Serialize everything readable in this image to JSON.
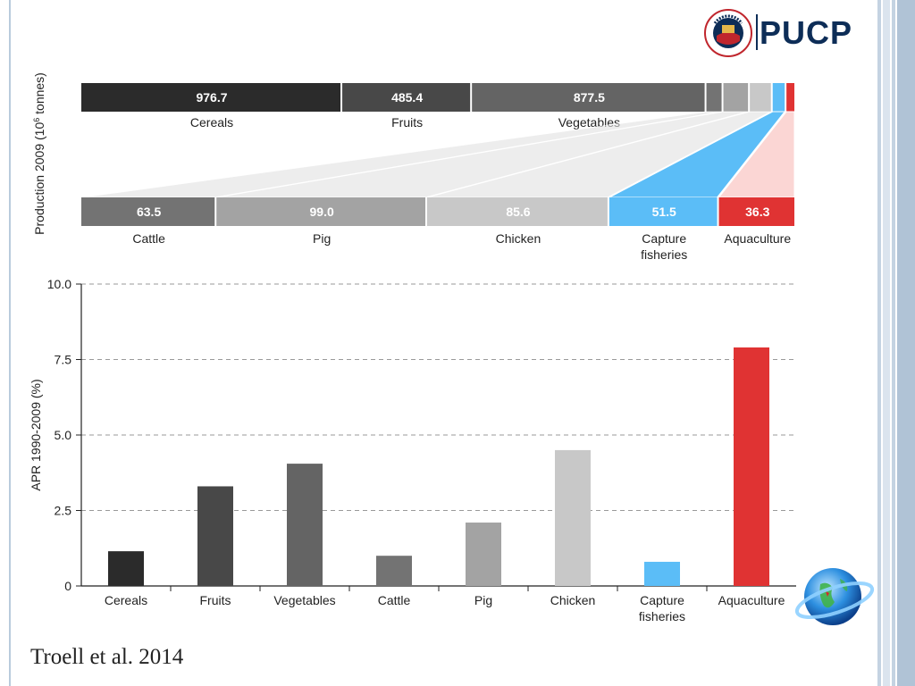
{
  "citation": "Troell et al. 2014",
  "logo": {
    "text": "PUCP",
    "seal_text": "ET LUX IN TENEBRIS LUCET"
  },
  "chart_data": [
    {
      "type": "bar",
      "orientation": "horizontal-stacked",
      "ylabel_main": "Production 2009 (10",
      "ylabel_sup": "6",
      "ylabel_tail": " tonnes)",
      "top_segments": [
        {
          "name": "Cereals",
          "value": 976.7,
          "label": "976.7",
          "color": "#2b2b2b"
        },
        {
          "name": "Fruits",
          "value": 485.4,
          "label": "485.4",
          "color": "#484848"
        },
        {
          "name": "Vegetables",
          "value": 877.5,
          "label": "877.5",
          "color": "#646464"
        },
        {
          "name": "Cattle",
          "value": 63.5,
          "label": "",
          "color": "#737373"
        },
        {
          "name": "Pig",
          "value": 99.0,
          "label": "",
          "color": "#a3a3a3"
        },
        {
          "name": "Chicken",
          "value": 85.6,
          "label": "",
          "color": "#c8c8c8"
        },
        {
          "name": "Capture fisheries",
          "value": 51.5,
          "label": "",
          "color": "#5bbdf7"
        },
        {
          "name": "Aquaculture",
          "value": 36.3,
          "label": "",
          "color": "#e03333"
        }
      ],
      "top_category_labels": [
        "Cereals",
        "Fruits",
        "Vegetables"
      ],
      "bottom_segments": [
        {
          "name": "Cattle",
          "label_lines": [
            "Cattle"
          ],
          "value": 63.5,
          "label": "63.5",
          "color": "#737373"
        },
        {
          "name": "Pig",
          "label_lines": [
            "Pig"
          ],
          "value": 99.0,
          "label": "99.0",
          "color": "#a3a3a3"
        },
        {
          "name": "Chicken",
          "label_lines": [
            "Chicken"
          ],
          "value": 85.6,
          "label": "85.6",
          "color": "#c8c8c8"
        },
        {
          "name": "Capture fisheries",
          "label_lines": [
            "Capture",
            "fisheries"
          ],
          "value": 51.5,
          "label": "51.5",
          "color": "#5bbdf7"
        },
        {
          "name": "Aquaculture",
          "label_lines": [
            "Aquaculture"
          ],
          "value": 36.3,
          "label": "36.3",
          "color": "#e03333"
        }
      ]
    },
    {
      "type": "bar",
      "ylabel": "APR 1990-2009 (%)",
      "ylim": [
        0,
        10
      ],
      "yticks": [
        "0",
        "2.5",
        "5.0",
        "7.5",
        "10.0"
      ],
      "grid": true,
      "categories": [
        [
          "Cereals"
        ],
        [
          "Fruits"
        ],
        [
          "Vegetables"
        ],
        [
          "Cattle"
        ],
        [
          "Pig"
        ],
        [
          "Chicken"
        ],
        [
          "Capture",
          "fisheries"
        ],
        [
          "Aquaculture"
        ]
      ],
      "values": [
        1.15,
        3.3,
        4.05,
        1.0,
        2.1,
        4.5,
        0.8,
        7.9
      ],
      "colors": [
        "#2b2b2b",
        "#484848",
        "#646464",
        "#737373",
        "#a3a3a3",
        "#c8c8c8",
        "#5bbdf7",
        "#e03333"
      ]
    }
  ]
}
